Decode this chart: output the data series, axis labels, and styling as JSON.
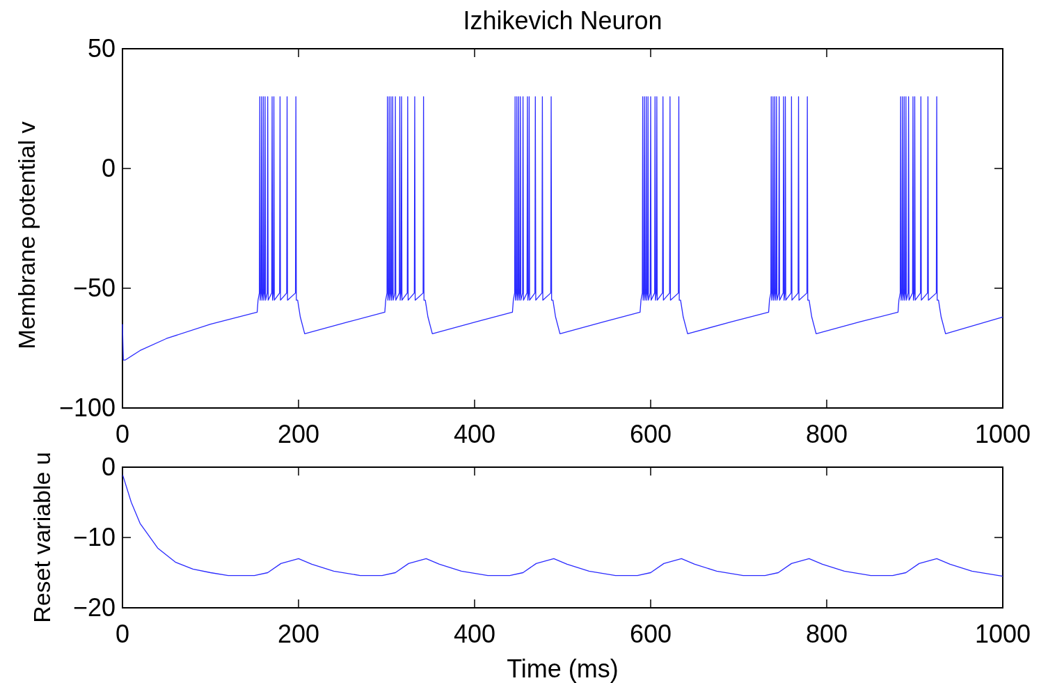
{
  "chart_data": [
    {
      "type": "line",
      "title": "Izhikevich Neuron",
      "ylabel": "Membrane potential v",
      "xlim": [
        0,
        1000
      ],
      "xticks": [
        0,
        200,
        400,
        600,
        800,
        1000
      ],
      "ylim": [
        -100,
        50
      ],
      "yticks": [
        {
          "value": -100,
          "label": "−100"
        },
        {
          "value": -50,
          "label": "−50"
        },
        {
          "value": 0,
          "label": "0"
        },
        {
          "value": 50,
          "label": "50"
        }
      ],
      "grid": false,
      "series": [
        {
          "color": "#2a2aff",
          "x": [
            0,
            1,
            3,
            20,
            50,
            100,
            153,
            154,
            155.5,
            156,
            156.5,
            157.5,
            158,
            158.5,
            159.5,
            160,
            160.5,
            161.5,
            162,
            162.5,
            164.5,
            165,
            165.5,
            169.5,
            170,
            170.5,
            171.5,
            172,
            172.5,
            178.5,
            179,
            179.5,
            186.5,
            187,
            187.5,
            196.5,
            197,
            197.5,
            199,
            202,
            207,
            257,
            298,
            299,
            300.5,
            301,
            301.5,
            302.5,
            303,
            303.5,
            304.5,
            305,
            305.5,
            306.5,
            307,
            307.5,
            309.5,
            310,
            310.5,
            314.5,
            315,
            315.5,
            316.5,
            317,
            317.5,
            323.5,
            324,
            324.5,
            331.5,
            332,
            332.5,
            341.5,
            342,
            342.5,
            344,
            347,
            352,
            402,
            443,
            444,
            445.5,
            446,
            446.5,
            447.5,
            448,
            448.5,
            449.5,
            450,
            450.5,
            451.5,
            452,
            452.5,
            454.5,
            455,
            455.5,
            459.5,
            460,
            460.5,
            461.5,
            462,
            462.5,
            468.5,
            469,
            469.5,
            476.5,
            477,
            477.5,
            486.5,
            487,
            487.5,
            489,
            492,
            497,
            547,
            588,
            589,
            590.5,
            591,
            591.5,
            592.5,
            593,
            593.5,
            594.5,
            595,
            595.5,
            596.5,
            597,
            597.5,
            599.5,
            600,
            600.5,
            604.5,
            605,
            605.5,
            606.5,
            607,
            607.5,
            613.5,
            614,
            614.5,
            621.5,
            622,
            622.5,
            631.5,
            632,
            632.5,
            634,
            637,
            642,
            692,
            734,
            735,
            736.5,
            737,
            737.5,
            738.5,
            739,
            739.5,
            740.5,
            741,
            741.5,
            742.5,
            743,
            743.5,
            745.5,
            746,
            746.5,
            750.5,
            751,
            751.5,
            752.5,
            753,
            753.5,
            759.5,
            760,
            760.5,
            767.5,
            768,
            768.5,
            777.5,
            778,
            778.5,
            780,
            783,
            788,
            838,
            881,
            882,
            883.5,
            884,
            884.5,
            885.5,
            886,
            886.5,
            887.5,
            888,
            888.5,
            889.5,
            890,
            890.5,
            892.5,
            893,
            893.5,
            897.5,
            898,
            898.5,
            899.5,
            900,
            900.5,
            906.5,
            907,
            907.5,
            914.5,
            915,
            915.5,
            924.5,
            925,
            925.5,
            927,
            930,
            935,
            1000
          ],
          "values": [
            -65,
            -80,
            -80,
            -76,
            -71,
            -65,
            -60,
            -55,
            -52,
            30,
            -55,
            -52,
            30,
            -55,
            -52,
            30,
            -55,
            -52,
            30,
            -55,
            -52,
            30,
            -55,
            -52,
            30,
            -55,
            -52,
            30,
            -55,
            -52,
            30,
            -55,
            -52,
            30,
            -55,
            -52,
            30,
            -55,
            -55,
            -62,
            -69,
            -64,
            -60,
            -55,
            -52,
            30,
            -55,
            -52,
            30,
            -55,
            -52,
            30,
            -55,
            -52,
            30,
            -55,
            -52,
            30,
            -55,
            -52,
            30,
            -55,
            -52,
            30,
            -55,
            -52,
            30,
            -55,
            -52,
            30,
            -55,
            -52,
            30,
            -55,
            -55,
            -62,
            -69,
            -64,
            -60,
            -55,
            -52,
            30,
            -55,
            -52,
            30,
            -55,
            -52,
            30,
            -55,
            -52,
            30,
            -55,
            -52,
            30,
            -55,
            -52,
            30,
            -55,
            -52,
            30,
            -55,
            -52,
            30,
            -55,
            -52,
            30,
            -55,
            -52,
            30,
            -55,
            -55,
            -62,
            -69,
            -64,
            -60,
            -55,
            -52,
            30,
            -55,
            -52,
            30,
            -55,
            -52,
            30,
            -55,
            -52,
            30,
            -55,
            -52,
            30,
            -55,
            -52,
            30,
            -55,
            -52,
            30,
            -55,
            -52,
            30,
            -55,
            -52,
            30,
            -55,
            -52,
            30,
            -55,
            -55,
            -62,
            -69,
            -64,
            -60,
            -55,
            -52,
            30,
            -55,
            -52,
            30,
            -55,
            -52,
            30,
            -55,
            -52,
            30,
            -55,
            -52,
            30,
            -55,
            -52,
            30,
            -55,
            -52,
            30,
            -55,
            -52,
            30,
            -55,
            -52,
            30,
            -55,
            -52,
            30,
            -55,
            -55,
            -62,
            -69,
            -64,
            -60,
            -55,
            -52,
            30,
            -55,
            -52,
            30,
            -55,
            -52,
            30,
            -55,
            -52,
            30,
            -55,
            -52,
            30,
            -55,
            -52,
            30,
            -55,
            -52,
            30,
            -55,
            -52,
            30,
            -55,
            -52,
            30,
            -55,
            -52,
            30,
            -55,
            -55,
            -62,
            -69,
            -62
          ]
        }
      ]
    },
    {
      "type": "line",
      "xlabel": "Time (ms)",
      "ylabel": "Reset variable u",
      "xlim": [
        0,
        1000
      ],
      "xticks": [
        0,
        200,
        400,
        600,
        800,
        1000
      ],
      "ylim": [
        -20,
        0
      ],
      "yticks": [
        {
          "value": -20,
          "label": "−20"
        },
        {
          "value": -10,
          "label": "−10"
        },
        {
          "value": 0,
          "label": "0"
        }
      ],
      "grid": false,
      "series": [
        {
          "color": "#2a2aff",
          "x": [
            0,
            10,
            20,
            40,
            60,
            80,
            100,
            120,
            150,
            165,
            180,
            200,
            215,
            240,
            270,
            295,
            310,
            325,
            345,
            360,
            385,
            415,
            440,
            455,
            470,
            490,
            505,
            530,
            560,
            585,
            600,
            615,
            635,
            650,
            675,
            705,
            730,
            745,
            760,
            780,
            795,
            820,
            850,
            875,
            890,
            905,
            925,
            940,
            965,
            1000
          ],
          "values": [
            -1,
            -5,
            -8,
            -11.5,
            -13.5,
            -14.5,
            -15,
            -15.4,
            -15.4,
            -15,
            -13.7,
            -13,
            -13.8,
            -14.8,
            -15.4,
            -15.4,
            -15,
            -13.7,
            -13,
            -13.8,
            -14.8,
            -15.4,
            -15.4,
            -15,
            -13.7,
            -13,
            -13.8,
            -14.8,
            -15.4,
            -15.4,
            -15,
            -13.7,
            -13,
            -13.8,
            -14.8,
            -15.4,
            -15.4,
            -15,
            -13.7,
            -13,
            -13.8,
            -14.8,
            -15.4,
            -15.4,
            -15,
            -13.7,
            -13,
            -13.8,
            -14.8,
            -15.5
          ]
        }
      ]
    }
  ]
}
